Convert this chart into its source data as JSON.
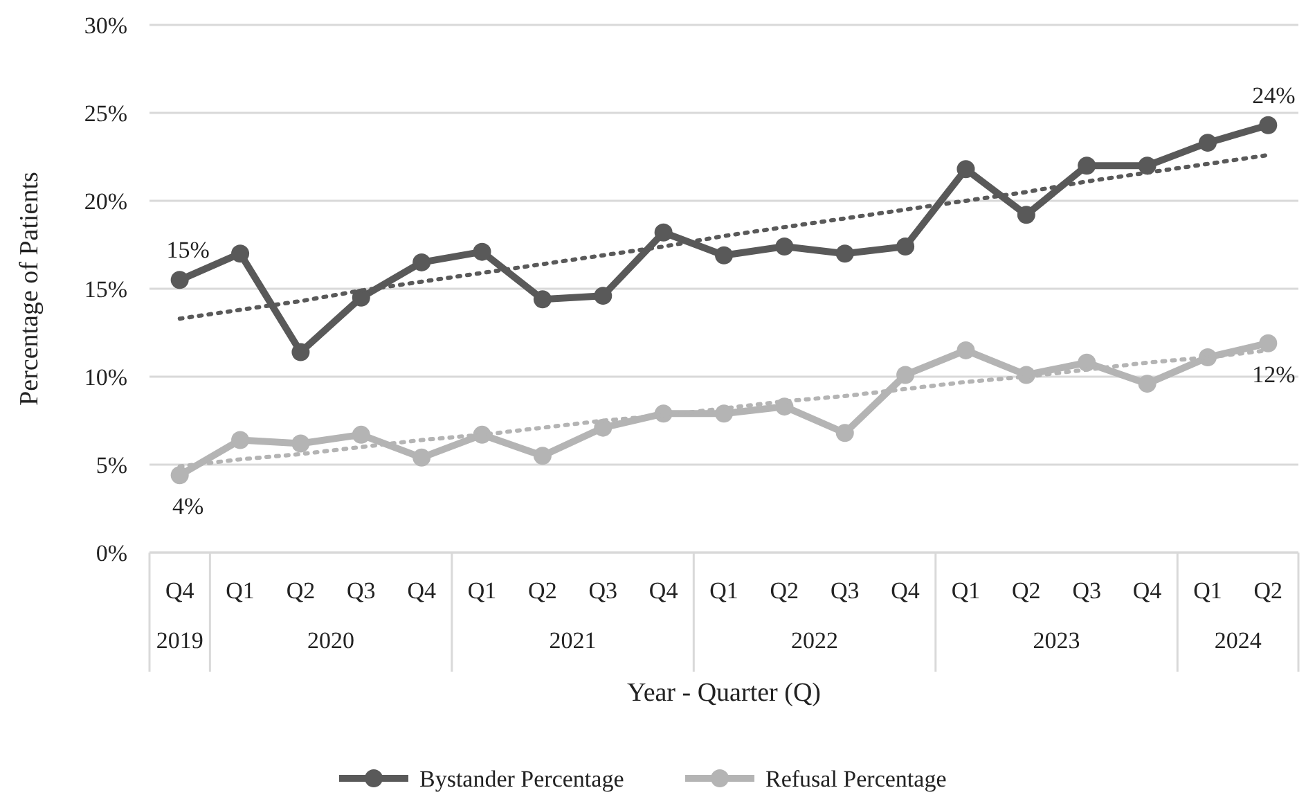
{
  "chart_data": {
    "type": "line",
    "xlabel": "Year - Quarter (Q)",
    "ylabel": "Percentage of Patients",
    "categories": [
      "Q4",
      "Q1",
      "Q2",
      "Q3",
      "Q4",
      "Q1",
      "Q2",
      "Q3",
      "Q4",
      "Q1",
      "Q2",
      "Q3",
      "Q4",
      "Q1",
      "Q2",
      "Q3",
      "Q4",
      "Q1",
      "Q2"
    ],
    "annotations": [
      "2019",
      "2020",
      "2021",
      "2022",
      "2023",
      "2024"
    ],
    "ylim": [
      0,
      30
    ],
    "yticks": [
      {
        "value": 0,
        "label": "0%"
      },
      {
        "value": 5,
        "label": "5%"
      },
      {
        "value": 10,
        "label": "10%"
      },
      {
        "value": 15,
        "label": "15%"
      },
      {
        "value": 20,
        "label": "20%"
      },
      {
        "value": 25,
        "label": "25%"
      },
      {
        "value": 30,
        "label": "30%"
      }
    ],
    "grid": "y",
    "legend": "bottom",
    "marker": "circle",
    "series": [
      {
        "name": "Bystander Percentage",
        "color": "#595959",
        "values": [
          15.5,
          17.0,
          11.4,
          14.5,
          16.5,
          17.1,
          14.4,
          14.6,
          18.2,
          16.9,
          17.4,
          17.0,
          17.4,
          21.8,
          19.2,
          22.0,
          22.0,
          23.3,
          24.3
        ],
        "value_labels": [
          "15%",
          null,
          null,
          null,
          null,
          null,
          null,
          null,
          null,
          null,
          null,
          null,
          null,
          null,
          null,
          null,
          null,
          null,
          "24%"
        ]
      },
      {
        "name": "Refusal Percentage",
        "color": "#b4b4b4",
        "values": [
          4.4,
          6.4,
          6.2,
          6.7,
          5.4,
          6.7,
          5.5,
          7.1,
          7.9,
          7.9,
          8.3,
          6.8,
          10.1,
          11.5,
          10.1,
          10.8,
          9.6,
          11.1,
          11.9
        ],
        "value_labels": [
          "4%",
          null,
          null,
          null,
          null,
          null,
          null,
          null,
          null,
          null,
          null,
          null,
          null,
          null,
          null,
          null,
          null,
          null,
          "12%"
        ]
      },
      {
        "color": "#595959",
        "line_style": "dotted",
        "marker": "none",
        "values": [
          13.3,
          13.8,
          14.3,
          14.9,
          15.4,
          15.9,
          16.4,
          16.9,
          17.4,
          18.0,
          18.5,
          19.0,
          19.5,
          20.0,
          20.5,
          21.1,
          21.6,
          22.1,
          22.6
        ]
      },
      {
        "color": "#b4b4b4",
        "line_style": "dotted",
        "marker": "none",
        "values": [
          4.9,
          5.3,
          5.6,
          6.0,
          6.4,
          6.7,
          7.1,
          7.5,
          7.8,
          8.2,
          8.6,
          8.9,
          9.3,
          9.7,
          10.0,
          10.4,
          10.8,
          11.1,
          11.5
        ]
      }
    ]
  }
}
